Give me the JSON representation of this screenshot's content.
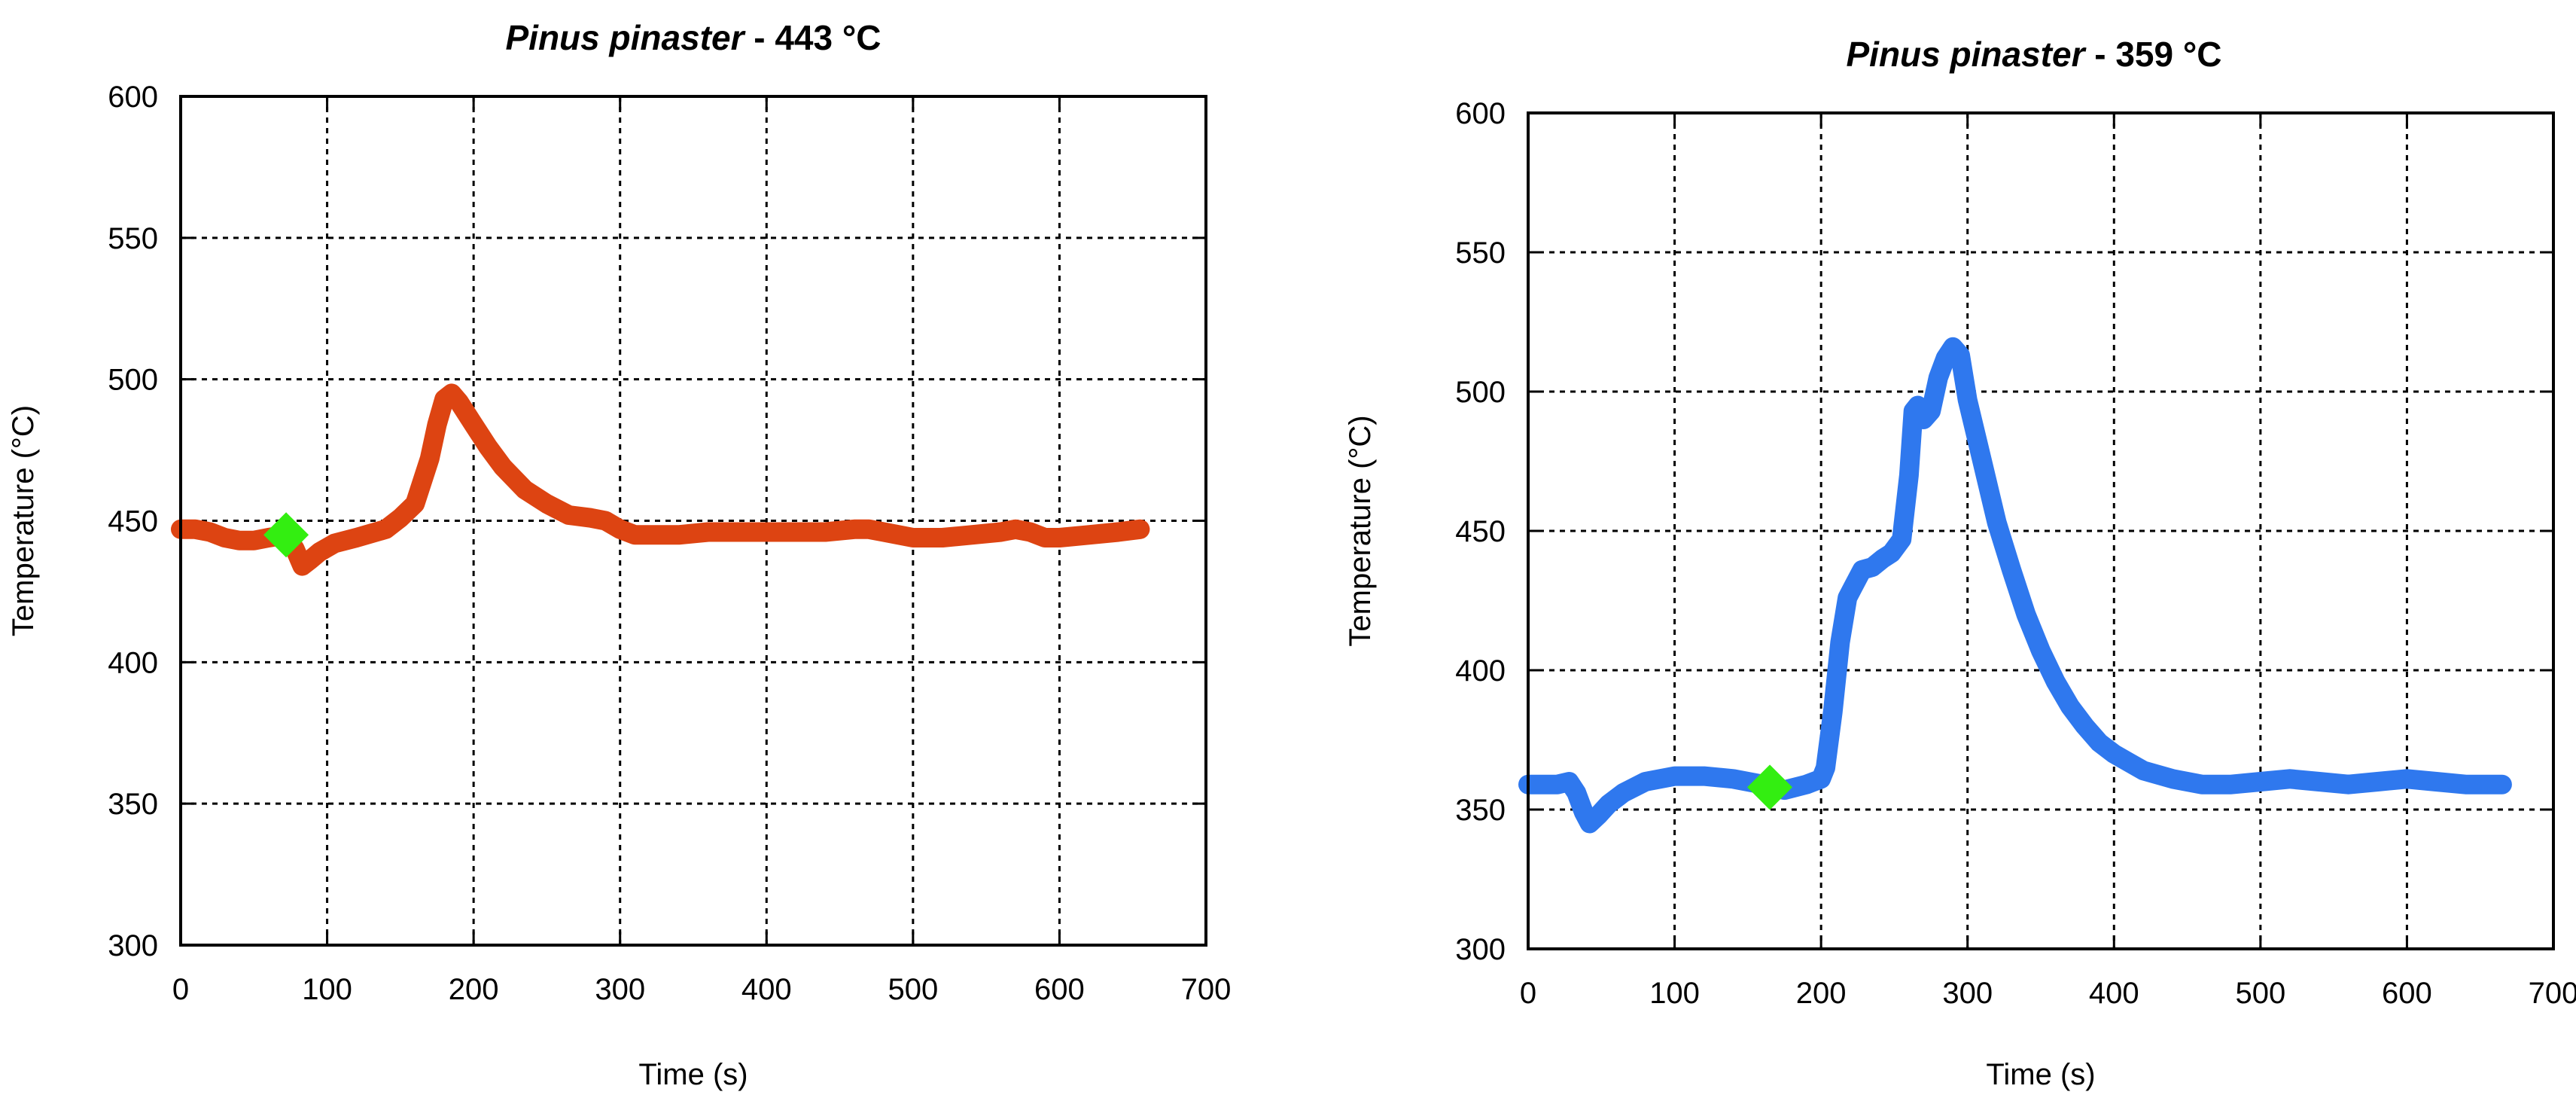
{
  "chart_data": [
    {
      "type": "line",
      "title_species": "Pinus pinaster",
      "title_rest": " - 443 °C",
      "xlabel": "Time (s)",
      "ylabel": "Temperature (°C)",
      "xlim": [
        0,
        700
      ],
      "ylim": [
        300,
        600
      ],
      "xticks": [
        "0",
        "100",
        "200",
        "300",
        "400",
        "500",
        "600",
        "700"
      ],
      "yticks": [
        "300",
        "350",
        "400",
        "450",
        "500",
        "550",
        "600"
      ],
      "grid": true,
      "series": [
        {
          "color": "#dd4412",
          "x": [
            0,
            10,
            20,
            30,
            40,
            50,
            60,
            72,
            78,
            83,
            88,
            95,
            105,
            120,
            140,
            150,
            160,
            170,
            175,
            180,
            185,
            190,
            200,
            210,
            220,
            235,
            250,
            265,
            280,
            290,
            300,
            310,
            320,
            340,
            360,
            380,
            400,
            420,
            440,
            460,
            470,
            480,
            490,
            500,
            520,
            540,
            560,
            570,
            580,
            590,
            600,
            620,
            640,
            655
          ],
          "y": [
            447,
            447,
            446,
            444,
            443,
            443,
            444,
            445,
            440,
            434,
            436,
            439,
            442,
            444,
            447,
            451,
            456,
            472,
            484,
            493,
            495,
            492,
            484,
            476,
            469,
            461,
            456,
            452,
            451,
            450,
            447,
            445,
            445,
            445,
            446,
            446,
            446,
            446,
            446,
            447,
            447,
            446,
            445,
            444,
            444,
            445,
            446,
            447,
            446,
            444,
            444,
            445,
            446,
            447
          ]
        }
      ],
      "marker": {
        "x": 72,
        "y": 445,
        "color": "#33ee11",
        "shape": "diamond"
      }
    },
    {
      "type": "line",
      "title_species": "Pinus pinaster",
      "title_rest": " - 359 °C",
      "xlabel": "Time (s)",
      "ylabel": "Temperature (°C)",
      "xlim": [
        0,
        700
      ],
      "ylim": [
        300,
        600
      ],
      "xticks": [
        "0",
        "100",
        "200",
        "300",
        "400",
        "500",
        "600",
        "700"
      ],
      "yticks": [
        "300",
        "350",
        "400",
        "450",
        "500",
        "550",
        "600"
      ],
      "grid": true,
      "series": [
        {
          "color": "#2f78ee",
          "x": [
            0,
            10,
            20,
            28,
            33,
            38,
            42,
            48,
            55,
            65,
            80,
            100,
            120,
            140,
            160,
            175,
            190,
            200,
            203,
            208,
            213,
            218,
            222,
            228,
            235,
            242,
            248,
            255,
            260,
            263,
            266,
            270,
            275,
            280,
            285,
            290,
            295,
            300,
            310,
            320,
            330,
            340,
            350,
            360,
            370,
            380,
            390,
            400,
            410,
            420,
            440,
            460,
            480,
            500,
            520,
            540,
            560,
            580,
            600,
            620,
            640,
            665
          ],
          "y": [
            359,
            359,
            359,
            360,
            356,
            349,
            345,
            348,
            352,
            356,
            360,
            362,
            362,
            361,
            359,
            357,
            359,
            361,
            365,
            385,
            410,
            426,
            430,
            436,
            437,
            440,
            442,
            447,
            470,
            493,
            495,
            490,
            493,
            505,
            512,
            516,
            513,
            497,
            475,
            453,
            436,
            420,
            407,
            396,
            387,
            380,
            374,
            370,
            367,
            364,
            361,
            359,
            359,
            360,
            361,
            360,
            359,
            360,
            361,
            360,
            359,
            359
          ]
        }
      ],
      "marker": {
        "x": 165,
        "y": 358,
        "color": "#33ee11",
        "shape": "diamond"
      }
    }
  ]
}
